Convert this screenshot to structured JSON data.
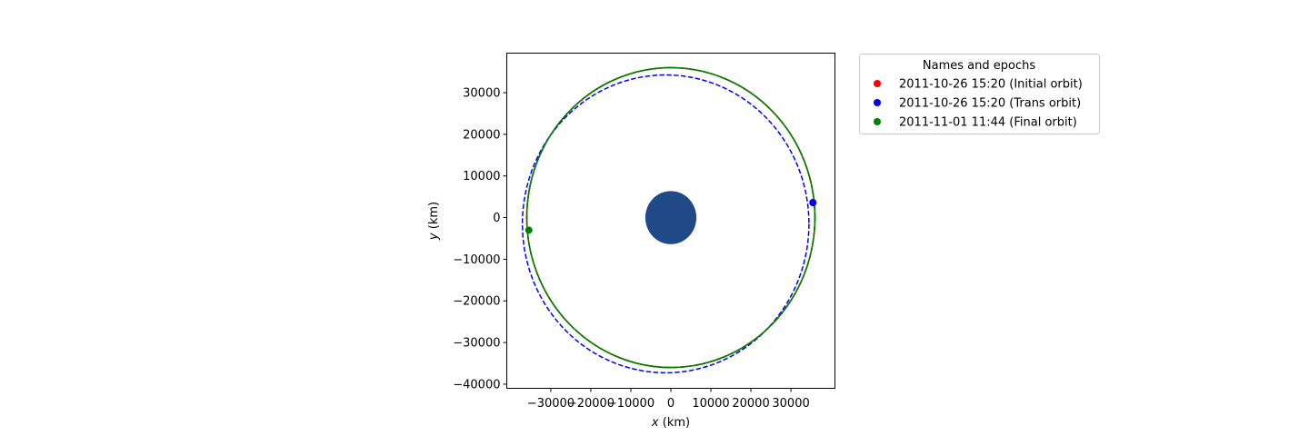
{
  "chart_data": {
    "type": "line",
    "title": "",
    "xlabel": {
      "var": "x",
      "unit": " (km)"
    },
    "ylabel": {
      "var": "y",
      "unit": " (km)"
    },
    "xlim": [
      -41000,
      41000
    ],
    "ylim": [
      -41000,
      39500
    ],
    "xticks": [
      -30000,
      -20000,
      -10000,
      0,
      10000,
      20000,
      30000
    ],
    "yticks": [
      -40000,
      -30000,
      -20000,
      -10000,
      0,
      10000,
      20000,
      30000
    ],
    "grid": false,
    "aspect": "equal",
    "attractor": {
      "name": "Earth",
      "radius_km": 6378,
      "color": "#1f4a87"
    },
    "series": [
      {
        "name": "2011-10-26 15:20 (Initial orbit)",
        "color": "#ff0000",
        "line_style": "solid-and-dashed",
        "orbit": {
          "a": 36000,
          "e": 0.0,
          "center_x": 0,
          "center_y": 0
        },
        "marker": [
          35500,
          3600
        ]
      },
      {
        "name": "2011-10-26 15:20 (Trans orbit)",
        "color": "#0000ff",
        "line_style": "dashed",
        "orbit": {
          "a": 35800,
          "e": 0.045,
          "center_x": -1300,
          "center_y": -1500
        },
        "marker": [
          35500,
          3600
        ]
      },
      {
        "name": "2011-11-01 11:44 (Final orbit)",
        "color": "#008000",
        "line_style": "solid-and-dashed",
        "orbit": {
          "a": 36000,
          "e": 0.0,
          "center_x": 0,
          "center_y": 0
        },
        "marker": [
          -35500,
          -3000
        ]
      }
    ],
    "legend": {
      "title": "Names and epochs",
      "placement": "outside-right"
    }
  }
}
